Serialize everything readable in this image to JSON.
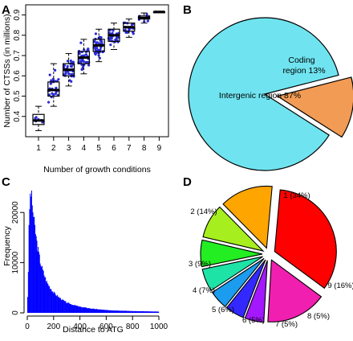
{
  "panels": {
    "a": {
      "label": "A"
    },
    "b": {
      "label": "B"
    },
    "c": {
      "label": "C"
    },
    "d": {
      "label": "D"
    }
  },
  "chart_data": [
    {
      "id": "A",
      "type": "boxplot",
      "xlabel": "Number of growth conditions",
      "ylabel": "Number of CTSSs (in millions)",
      "x": [
        1,
        2,
        3,
        4,
        5,
        6,
        7,
        8,
        9
      ],
      "ylim": [
        0.3,
        0.95
      ],
      "yticks": [
        0.4,
        0.5,
        0.6,
        0.7,
        0.8,
        0.9
      ],
      "colors": {
        "points": "#2b2bd4",
        "box": "#000000"
      },
      "boxes": [
        {
          "x": 1,
          "min": 0.33,
          "q1": 0.36,
          "median": 0.38,
          "q3": 0.41,
          "max": 0.45
        },
        {
          "x": 2,
          "min": 0.45,
          "q1": 0.5,
          "median": 0.53,
          "q3": 0.57,
          "max": 0.66
        },
        {
          "x": 3,
          "min": 0.55,
          "q1": 0.6,
          "median": 0.63,
          "q3": 0.66,
          "max": 0.71
        },
        {
          "x": 4,
          "min": 0.61,
          "q1": 0.66,
          "median": 0.69,
          "q3": 0.72,
          "max": 0.78
        },
        {
          "x": 5,
          "min": 0.67,
          "q1": 0.72,
          "median": 0.75,
          "q3": 0.78,
          "max": 0.83
        },
        {
          "x": 6,
          "min": 0.73,
          "q1": 0.77,
          "median": 0.8,
          "q3": 0.83,
          "max": 0.86
        },
        {
          "x": 7,
          "min": 0.79,
          "q1": 0.82,
          "median": 0.84,
          "q3": 0.86,
          "max": 0.88
        },
        {
          "x": 8,
          "min": 0.86,
          "q1": 0.88,
          "median": 0.885,
          "q3": 0.895,
          "max": 0.91
        },
        {
          "x": 9,
          "min": 0.915,
          "q1": 0.915,
          "median": 0.915,
          "q3": 0.915,
          "max": 0.915
        }
      ]
    },
    {
      "id": "B",
      "type": "pie",
      "color_border": "#000000",
      "slices": [
        {
          "label": "Intergenic region 87%",
          "value": 87,
          "color": "#6fe4f0",
          "exploded": false
        },
        {
          "label_lines": [
            "Coding",
            "region 13%"
          ],
          "value": 13,
          "color": "#f29b55",
          "exploded": true
        }
      ]
    },
    {
      "id": "C",
      "type": "histogram",
      "xlabel": "Distance to ATG",
      "ylabel": "Frequency",
      "xlim": [
        0,
        1000
      ],
      "ylim": [
        0,
        25000
      ],
      "xticks": [
        0,
        200,
        400,
        600,
        800,
        1000
      ],
      "yticks": [
        0,
        10000,
        20000
      ],
      "color": "#0000ff",
      "bin_width": 5,
      "profile": [
        {
          "x": 0,
          "y": 2500
        },
        {
          "x": 5,
          "y": 4000
        },
        {
          "x": 10,
          "y": 13000
        },
        {
          "x": 15,
          "y": 20000
        },
        {
          "x": 20,
          "y": 22000
        },
        {
          "x": 25,
          "y": 24500
        },
        {
          "x": 30,
          "y": 23500
        },
        {
          "x": 40,
          "y": 21000
        },
        {
          "x": 50,
          "y": 18500
        },
        {
          "x": 60,
          "y": 16500
        },
        {
          "x": 75,
          "y": 13500
        },
        {
          "x": 100,
          "y": 10000
        },
        {
          "x": 125,
          "y": 7800
        },
        {
          "x": 150,
          "y": 6000
        },
        {
          "x": 200,
          "y": 4000
        },
        {
          "x": 250,
          "y": 2900
        },
        {
          "x": 300,
          "y": 2000
        },
        {
          "x": 400,
          "y": 1200
        },
        {
          "x": 500,
          "y": 800
        },
        {
          "x": 600,
          "y": 550
        },
        {
          "x": 800,
          "y": 350
        },
        {
          "x": 1000,
          "y": 250
        }
      ]
    },
    {
      "id": "D",
      "type": "pie",
      "color_border": "#000000",
      "slices": [
        {
          "label": "1 (34%)",
          "value": 34,
          "color": "#ff0000"
        },
        {
          "label": "9 (16%)",
          "value": 16,
          "color": "#f01fb0"
        },
        {
          "label": "8 (5%)",
          "value": 5,
          "color": "#a418ff"
        },
        {
          "label": "7 (5%)",
          "value": 5,
          "color": "#3328ff"
        },
        {
          "label": "6 (5%)",
          "value": 5,
          "color": "#1c9cee"
        },
        {
          "label": "5 (6%)",
          "value": 6,
          "color": "#1de3a6"
        },
        {
          "label": "4 (7%)",
          "value": 7,
          "color": "#22ee22"
        },
        {
          "label": "3 (9%)",
          "value": 9,
          "color": "#a6ee1e"
        },
        {
          "label": "2 (14%)",
          "value": 14,
          "color": "#ffa500"
        }
      ]
    }
  ]
}
